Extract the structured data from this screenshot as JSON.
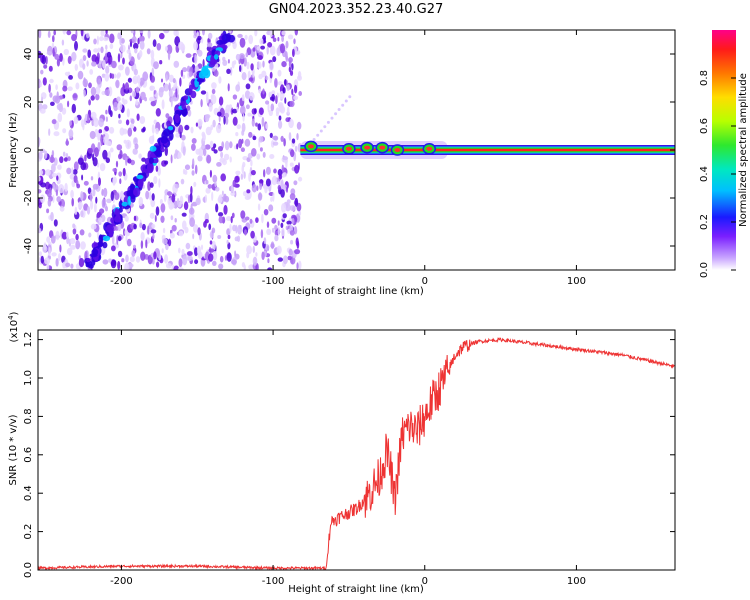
{
  "title": "GN04.2023.352.23.40.G27",
  "chart_data": [
    {
      "type": "heatmap",
      "xlabel": "Height of straight line (km)",
      "ylabel": "Frequency (Hz)",
      "xlim": [
        -255,
        165
      ],
      "ylim": [
        -50,
        50
      ],
      "x_ticks": [
        "-200",
        "-100",
        "0",
        "100"
      ],
      "x_tick_values": [
        -200,
        -100,
        0,
        100
      ],
      "y_ticks": [
        "40",
        "20",
        "0",
        "-20",
        "-40"
      ],
      "y_tick_values": [
        40,
        20,
        0,
        -20,
        -40
      ],
      "colorbar": {
        "label": "Normalized spectral amplitude",
        "ticks": [
          "0.0",
          "0.2",
          "0.4",
          "0.6",
          "0.8"
        ],
        "tick_values": [
          0.0,
          0.2,
          0.4,
          0.6,
          0.8
        ],
        "range": [
          0,
          1
        ]
      },
      "noise_region_x": [
        -255,
        -82
      ],
      "diagonal_streak": {
        "x": [
          -222,
          -130
        ],
        "y": [
          -48,
          48
        ]
      },
      "carrier_line": {
        "x_start": -82,
        "x_end": 165,
        "y": 0
      }
    },
    {
      "type": "line",
      "xlabel": "Height of straight line (km)",
      "ylabel": "SNR (10 * v/v)",
      "y_multiplier": "(x10",
      "y_multiplier_exp": "4",
      "y_multiplier_close": ")",
      "xlim": [
        -255,
        165
      ],
      "ylim": [
        0,
        1.25
      ],
      "x_ticks": [
        "-200",
        "-100",
        "0",
        "100"
      ],
      "x_tick_values": [
        -200,
        -100,
        0,
        100
      ],
      "y_ticks": [
        "0.0",
        "0.2",
        "0.4",
        "0.6",
        "0.8",
        "1.0",
        "1.2"
      ],
      "y_tick_values": [
        0.0,
        0.2,
        0.4,
        0.6,
        0.8,
        1.0,
        1.2
      ],
      "color": "#ee3333",
      "series": [
        {
          "x": [
            -255,
            -200,
            -150,
            -100,
            -80,
            -65,
            -62,
            -55,
            -45,
            -38,
            -30,
            -25,
            -22,
            -20,
            -15,
            -10,
            -5,
            0,
            5,
            10,
            15,
            20,
            25,
            35,
            50,
            70,
            100,
            130,
            165
          ],
          "values": [
            0.01,
            0.02,
            0.02,
            0.01,
            0.01,
            0.01,
            0.25,
            0.28,
            0.32,
            0.38,
            0.48,
            0.62,
            0.5,
            0.35,
            0.7,
            0.75,
            0.72,
            0.8,
            0.88,
            0.95,
            1.02,
            1.12,
            1.16,
            1.19,
            1.2,
            1.18,
            1.15,
            1.12,
            1.06
          ]
        }
      ]
    }
  ]
}
